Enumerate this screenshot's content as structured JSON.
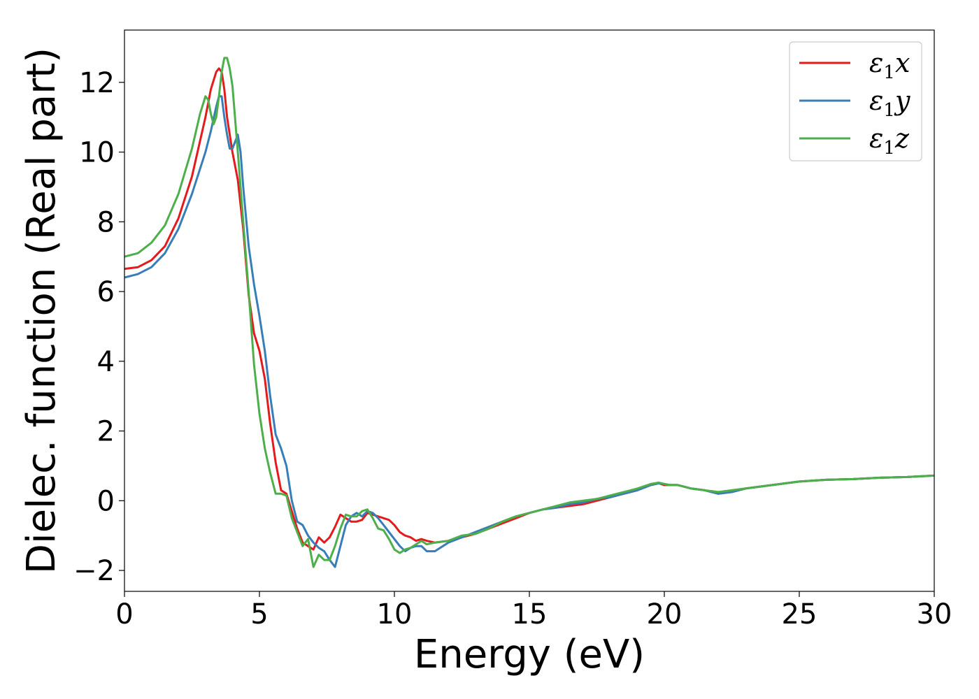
{
  "chart_data": {
    "type": "line",
    "xlabel": "Energy (eV)",
    "ylabel": "Dielec. function (Real part)",
    "xlim": [
      0,
      30
    ],
    "ylim": [
      -2.6,
      13.5
    ],
    "xticks": [
      0,
      5,
      10,
      15,
      20,
      25,
      30
    ],
    "xtick_labels": [
      "0",
      "5",
      "10",
      "15",
      "20",
      "25",
      "30"
    ],
    "yticks": [
      -2,
      0,
      2,
      4,
      6,
      8,
      10,
      12
    ],
    "ytick_labels": [
      "−2",
      "0",
      "2",
      "4",
      "6",
      "8",
      "10",
      "12"
    ],
    "grid": false,
    "legend_position": "top-right",
    "series": [
      {
        "name": "ε1x",
        "legend": {
          "base": "ε",
          "sub": "1",
          "comp": "x"
        },
        "color": "#e41a1c",
        "x": [
          0,
          0.5,
          1,
          1.5,
          2,
          2.5,
          3,
          3.2,
          3.4,
          3.5,
          3.6,
          3.7,
          3.8,
          4,
          4.2,
          4.4,
          4.6,
          4.8,
          5,
          5.2,
          5.4,
          5.6,
          5.8,
          6,
          6.2,
          6.4,
          6.6,
          6.8,
          7,
          7.2,
          7.4,
          7.6,
          7.8,
          8,
          8.2,
          8.4,
          8.6,
          8.8,
          9,
          9.2,
          9.4,
          9.6,
          9.8,
          10,
          10.2,
          10.4,
          10.6,
          10.8,
          11,
          11.2,
          11.5,
          12,
          12.5,
          13,
          13.5,
          14,
          14.5,
          15,
          15.5,
          16,
          16.5,
          17,
          17.5,
          18,
          18.5,
          19,
          19.5,
          19.8,
          20,
          20.2,
          20.5,
          21,
          21.5,
          22,
          22.5,
          23,
          23.5,
          24,
          24.5,
          25,
          26,
          27,
          28,
          29,
          30
        ],
        "y": [
          6.65,
          6.7,
          6.9,
          7.3,
          8.1,
          9.3,
          11.0,
          11.8,
          12.3,
          12.4,
          12.3,
          11.8,
          11.0,
          10.0,
          9.2,
          7.8,
          5.9,
          4.8,
          4.3,
          3.5,
          2.2,
          1.1,
          0.3,
          0.2,
          -0.3,
          -0.8,
          -1.2,
          -1.3,
          -1.4,
          -1.05,
          -1.2,
          -1.05,
          -0.75,
          -0.4,
          -0.5,
          -0.6,
          -0.6,
          -0.55,
          -0.35,
          -0.4,
          -0.45,
          -0.5,
          -0.55,
          -0.7,
          -0.9,
          -1.0,
          -1.05,
          -1.15,
          -1.1,
          -1.15,
          -1.2,
          -1.15,
          -1.05,
          -0.95,
          -0.8,
          -0.65,
          -0.5,
          -0.35,
          -0.25,
          -0.2,
          -0.15,
          -0.1,
          0.0,
          0.1,
          0.2,
          0.3,
          0.45,
          0.5,
          0.45,
          0.45,
          0.45,
          0.35,
          0.3,
          0.2,
          0.25,
          0.35,
          0.4,
          0.45,
          0.5,
          0.55,
          0.6,
          0.62,
          0.66,
          0.68,
          0.72
        ]
      },
      {
        "name": "ε1y",
        "legend": {
          "base": "ε",
          "sub": "1",
          "comp": "y"
        },
        "color": "#377eb8",
        "x": [
          0,
          0.5,
          1,
          1.5,
          2,
          2.5,
          3,
          3.2,
          3.4,
          3.5,
          3.6,
          3.7,
          3.8,
          3.9,
          4,
          4.1,
          4.2,
          4.3,
          4.4,
          4.6,
          4.8,
          5,
          5.2,
          5.4,
          5.6,
          5.8,
          6,
          6.2,
          6.4,
          6.6,
          6.8,
          7,
          7.2,
          7.4,
          7.6,
          7.8,
          8,
          8.2,
          8.4,
          8.6,
          8.8,
          9,
          9.2,
          9.4,
          9.6,
          9.8,
          10,
          10.2,
          10.4,
          10.6,
          10.8,
          11,
          11.2,
          11.5,
          12,
          12.5,
          13,
          13.5,
          14,
          14.5,
          15,
          15.5,
          16,
          16.5,
          17,
          17.5,
          18,
          18.5,
          19,
          19.5,
          19.8,
          20,
          20.2,
          20.5,
          21,
          21.5,
          22,
          22.5,
          23,
          23.5,
          24,
          24.5,
          25,
          26,
          27,
          28,
          29,
          30
        ],
        "y": [
          6.4,
          6.5,
          6.7,
          7.1,
          7.8,
          8.8,
          10.0,
          10.6,
          11.3,
          11.6,
          11.6,
          11.0,
          10.5,
          10.1,
          10.1,
          10.3,
          10.5,
          10.0,
          9.0,
          7.3,
          6.2,
          5.3,
          4.3,
          3.0,
          1.9,
          1.5,
          1.0,
          0.0,
          -0.6,
          -0.7,
          -1.0,
          -1.2,
          -1.35,
          -1.45,
          -1.7,
          -1.9,
          -1.3,
          -0.7,
          -0.45,
          -0.35,
          -0.45,
          -0.3,
          -0.35,
          -0.5,
          -0.7,
          -0.9,
          -1.1,
          -1.3,
          -1.45,
          -1.35,
          -1.3,
          -1.3,
          -1.45,
          -1.45,
          -1.2,
          -1.05,
          -0.9,
          -0.75,
          -0.6,
          -0.45,
          -0.35,
          -0.25,
          -0.2,
          -0.1,
          -0.05,
          0.05,
          0.1,
          0.2,
          0.3,
          0.45,
          0.5,
          0.48,
          0.45,
          0.45,
          0.35,
          0.3,
          0.2,
          0.25,
          0.35,
          0.4,
          0.45,
          0.5,
          0.55,
          0.6,
          0.62,
          0.66,
          0.68,
          0.72
        ]
      },
      {
        "name": "ε1z",
        "legend": {
          "base": "ε",
          "sub": "1",
          "comp": "z"
        },
        "color": "#4daf4a",
        "x": [
          0,
          0.5,
          1,
          1.5,
          2,
          2.5,
          2.8,
          3.0,
          3.1,
          3.2,
          3.3,
          3.4,
          3.5,
          3.6,
          3.7,
          3.8,
          3.9,
          4,
          4.2,
          4.4,
          4.6,
          4.8,
          5,
          5.2,
          5.4,
          5.6,
          5.8,
          6,
          6.2,
          6.4,
          6.6,
          6.8,
          7,
          7.2,
          7.4,
          7.6,
          7.8,
          8,
          8.2,
          8.4,
          8.6,
          8.8,
          9,
          9.2,
          9.4,
          9.6,
          9.8,
          10,
          10.2,
          10.4,
          10.6,
          10.8,
          11,
          11.2,
          11.5,
          12,
          12.5,
          13,
          13.5,
          14,
          14.5,
          15,
          15.5,
          16,
          16.5,
          17,
          17.5,
          18,
          18.5,
          19,
          19.5,
          19.8,
          20,
          20.2,
          20.5,
          21,
          21.5,
          22,
          22.5,
          23,
          23.5,
          24,
          24.5,
          25,
          26,
          27,
          28,
          29,
          30
        ],
        "y": [
          7.0,
          7.1,
          7.4,
          7.9,
          8.8,
          10.1,
          11.1,
          11.6,
          11.5,
          11.1,
          10.8,
          11.0,
          11.6,
          12.3,
          12.7,
          12.7,
          12.4,
          11.9,
          10.0,
          8.0,
          6.0,
          3.9,
          2.5,
          1.5,
          0.8,
          0.2,
          0.2,
          0.15,
          -0.5,
          -0.9,
          -1.3,
          -1.1,
          -1.9,
          -1.55,
          -1.7,
          -1.7,
          -1.3,
          -0.8,
          -0.4,
          -0.45,
          -0.45,
          -0.3,
          -0.25,
          -0.5,
          -0.8,
          -0.85,
          -1.1,
          -1.4,
          -1.5,
          -1.4,
          -1.35,
          -1.25,
          -1.15,
          -1.25,
          -1.2,
          -1.15,
          -1.0,
          -0.95,
          -0.8,
          -0.6,
          -0.45,
          -0.35,
          -0.25,
          -0.15,
          -0.05,
          0.0,
          0.05,
          0.15,
          0.25,
          0.35,
          0.48,
          0.52,
          0.48,
          0.45,
          0.45,
          0.35,
          0.3,
          0.25,
          0.3,
          0.35,
          0.4,
          0.45,
          0.5,
          0.55,
          0.6,
          0.62,
          0.66,
          0.68,
          0.72
        ]
      }
    ]
  }
}
